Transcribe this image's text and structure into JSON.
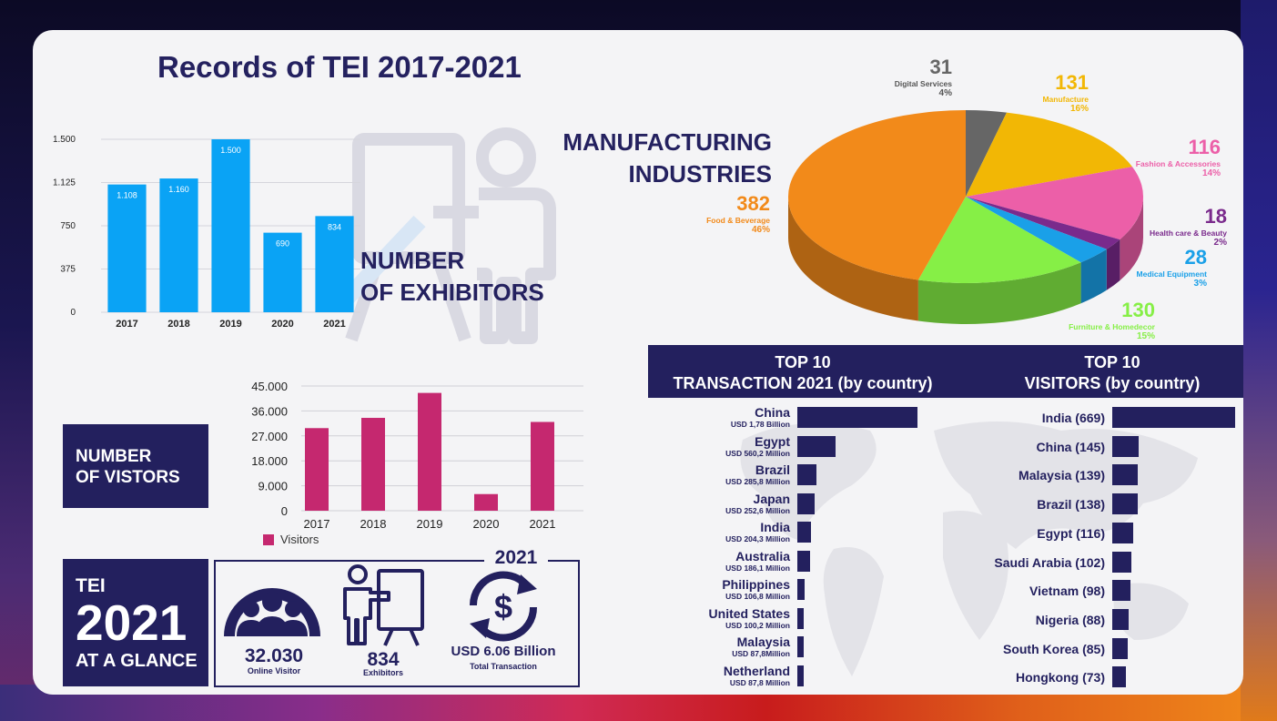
{
  "title": "Records of TEI 2017-2021",
  "exhibitors": {
    "heading_line1": "NUMBER",
    "heading_line2": "OF EXHIBITORS",
    "chart_data": {
      "type": "bar",
      "categories": [
        "2017",
        "2018",
        "2019",
        "2020",
        "2021"
      ],
      "values": [
        1108,
        1160,
        1500,
        690,
        834
      ],
      "value_labels": [
        "1.108",
        "1.160",
        "1.500",
        "690",
        "834"
      ],
      "ticks": [
        "0",
        "375",
        "750",
        "1.125",
        "1.500"
      ],
      "ylim": [
        0,
        1500
      ],
      "color": "#0aa3f5"
    }
  },
  "industries": {
    "heading_line1": "MANUFACTURING",
    "heading_line2": "INDUSTRIES",
    "chart_data": {
      "type": "pie",
      "slices": [
        {
          "name": "Digital Services",
          "value": 31,
          "pct": "4%",
          "color": "#666666"
        },
        {
          "name": "Manufacture",
          "value": 131,
          "pct": "16%",
          "color": "#f2b705"
        },
        {
          "name": "Fashion & Accessories",
          "value": 116,
          "pct": "14%",
          "color": "#ec5fa8"
        },
        {
          "name": "Health care & Beauty",
          "value": 18,
          "pct": "2%",
          "color": "#7a2a8c"
        },
        {
          "name": "Medical Equipment",
          "value": 28,
          "pct": "3%",
          "color": "#1aa0e8"
        },
        {
          "name": "Furniture & Homedecor",
          "value": 130,
          "pct": "15%",
          "color": "#86ef46"
        },
        {
          "name": "Food & Beverage",
          "value": 382,
          "pct": "46%",
          "color": "#f28a1a"
        }
      ]
    }
  },
  "visitors_chart": {
    "heading_line1": "NUMBER",
    "heading_line2": "OF VISTORS",
    "chart_data": {
      "type": "bar",
      "categories": [
        "2017",
        "2018",
        "2019",
        "2020",
        "2021"
      ],
      "series": [
        {
          "name": "Visitors",
          "values": [
            29800,
            33500,
            42500,
            6000,
            32030
          ]
        }
      ],
      "ticks": [
        "0",
        "9.000",
        "18.000",
        "27.000",
        "36.000",
        "45.000"
      ],
      "ylim": [
        0,
        45000
      ],
      "color": "#c5286f"
    }
  },
  "glance": {
    "tei": "TEI",
    "year": "2021",
    "subtitle": "AT A GLANCE",
    "box_year": "2021",
    "online_value": "32.030",
    "online_label": "Online Visitor",
    "exhibitors_value": "834",
    "exhibitors_label": "Exhibitors",
    "transaction_value": "USD 6.06 Billion",
    "transaction_label": "Total Transaction"
  },
  "transactions": {
    "heading_line1": "TOP 10",
    "heading_line2": "TRANSACTION 2021 (by country)",
    "chart_data": {
      "type": "bar",
      "categories": [
        "China",
        "Egypt",
        "Brazil",
        "Japan",
        "India",
        "Australia",
        "Philippines",
        "United States",
        "Malaysia",
        "Netherland"
      ],
      "labels": [
        "USD 1,78 Billion",
        "USD 560,2 Million",
        "USD 285,8 Million",
        "USD 252,6 Million",
        "USD 204,3 Million",
        "USD 186,1 Million",
        "USD 106,8 Million",
        "USD 100,2 Million",
        "USD 87,8Million",
        "USD 87,8 Million"
      ],
      "values": [
        1780,
        560.2,
        285.8,
        252.6,
        204.3,
        186.1,
        106.8,
        100.2,
        87.8,
        87.8
      ]
    }
  },
  "top_visitors": {
    "heading_line1": "TOP 10",
    "heading_line2": "VISITORS (by country)",
    "chart_data": {
      "type": "bar",
      "categories": [
        "India (669)",
        "China (145)",
        "Malaysia (139)",
        "Brazil (138)",
        "Egypt (116)",
        "Saudi Arabia (102)",
        "Vietnam (98)",
        "Nigeria (88)",
        "South Korea (85)",
        "Hongkong (73)"
      ],
      "values": [
        669,
        145,
        139,
        138,
        116,
        102,
        98,
        88,
        85,
        73
      ]
    }
  }
}
